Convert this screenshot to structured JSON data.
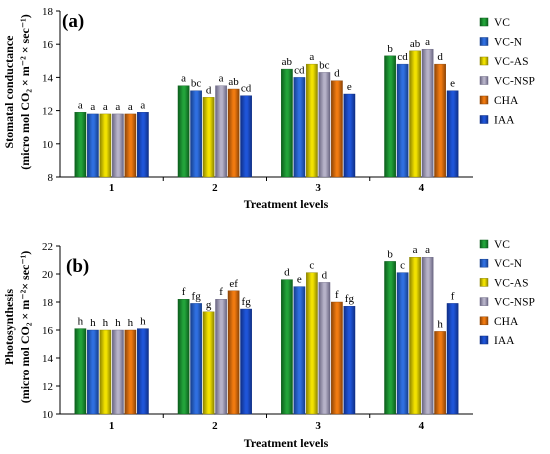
{
  "chart_data": [
    {
      "type": "bar",
      "panel_label": "(a)",
      "title": "",
      "xlabel": "Treatment levels",
      "ylabel_line1": "Stomatal conductance",
      "ylabel_line2": "(micro mol CO₂ × m⁻² × sec⁻¹)",
      "ylim": [
        8,
        18
      ],
      "yticks": [
        8,
        10,
        12,
        14,
        16,
        18
      ],
      "categories": [
        "1",
        "2",
        "3",
        "4"
      ],
      "series": [
        {
          "name": "VC",
          "values": [
            11.9,
            13.5,
            14.5,
            15.3
          ],
          "labels": [
            "a",
            "a",
            "ab",
            "b"
          ]
        },
        {
          "name": "VC-N",
          "values": [
            11.8,
            13.2,
            14.0,
            14.8
          ],
          "labels": [
            "a",
            "bc",
            "cd",
            "cd"
          ]
        },
        {
          "name": "VC-AS",
          "values": [
            11.8,
            12.8,
            14.8,
            15.6
          ],
          "labels": [
            "a",
            "d",
            "a",
            "ab"
          ]
        },
        {
          "name": "VC-NSP",
          "values": [
            11.8,
            13.5,
            14.3,
            15.7
          ],
          "labels": [
            "a",
            "a",
            "bc",
            "a"
          ]
        },
        {
          "name": "CHA",
          "values": [
            11.8,
            13.3,
            13.8,
            14.8
          ],
          "labels": [
            "a",
            "ab",
            "d",
            "d"
          ]
        },
        {
          "name": "IAA",
          "values": [
            11.9,
            12.9,
            13.0,
            13.2
          ],
          "labels": [
            "a",
            "cd",
            "e",
            "e"
          ]
        }
      ],
      "legend_position": "right",
      "grid": false
    },
    {
      "type": "bar",
      "panel_label": "(b)",
      "title": "",
      "xlabel": "Treatment levels",
      "ylabel_line1": "Photosynthesis",
      "ylabel_line2": "(micro mol CO₂ × m⁻²× sec⁻¹)",
      "ylim": [
        10,
        22
      ],
      "yticks": [
        10,
        12,
        14,
        16,
        18,
        20,
        22
      ],
      "categories": [
        "1",
        "2",
        "3",
        "4"
      ],
      "series": [
        {
          "name": "VC",
          "values": [
            16.1,
            18.2,
            19.6,
            20.9
          ],
          "labels": [
            "h",
            "f",
            "d",
            "b"
          ]
        },
        {
          "name": "VC-N",
          "values": [
            16.0,
            17.9,
            19.1,
            20.1
          ],
          "labels": [
            "h",
            "fg",
            "e",
            "c"
          ]
        },
        {
          "name": "VC-AS",
          "values": [
            16.0,
            17.3,
            20.1,
            21.2
          ],
          "labels": [
            "h",
            "g",
            "c",
            "a"
          ]
        },
        {
          "name": "VC-NSP",
          "values": [
            16.0,
            18.2,
            19.4,
            21.2
          ],
          "labels": [
            "h",
            "f",
            "d",
            "a"
          ]
        },
        {
          "name": "CHA",
          "values": [
            16.0,
            18.8,
            18.0,
            15.9
          ],
          "labels": [
            "h",
            "ef",
            "f",
            "h"
          ]
        },
        {
          "name": "IAA",
          "values": [
            16.1,
            17.5,
            17.7,
            17.9
          ],
          "labels": [
            "h",
            "fg",
            "fg",
            "f"
          ]
        }
      ],
      "legend_position": "right",
      "grid": false
    }
  ],
  "series_colors": {
    "VC": "#22a33a",
    "VC-N": "#2f6fe0",
    "VC-AS": "#f2e200",
    "VC-NSP": "#b6b2c8",
    "CHA": "#f07a10",
    "IAA": "#1f55d8"
  },
  "series_colors_dark": {
    "VC": "#0c5e1c",
    "VC-N": "#163f8c",
    "VC-AS": "#8c8400",
    "VC-NSP": "#6a6682",
    "CHA": "#8c4406",
    "IAA": "#0f2f86"
  }
}
